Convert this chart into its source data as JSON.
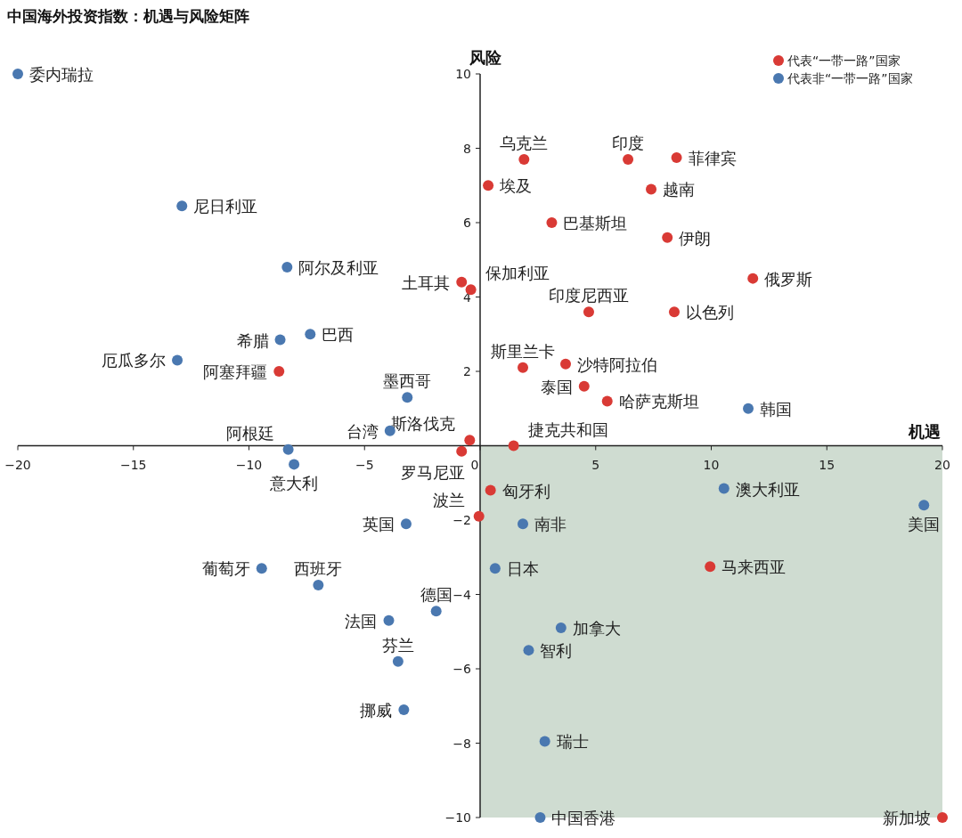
{
  "chart_data": {
    "type": "scatter",
    "title": "中国海外投资指数：机遇与风险矩阵",
    "xlabel": "机遇",
    "ylabel": "风险",
    "xlim": [
      -20,
      20
    ],
    "ylim": [
      -10,
      10
    ],
    "xticks": [
      -20,
      -15,
      -10,
      -5,
      0,
      5,
      10,
      15,
      20
    ],
    "yticks": [
      -10,
      -8,
      -6,
      -4,
      -2,
      {
        "value": 0,
        "label": null
      },
      2,
      4,
      6,
      8,
      10
    ],
    "grid": false,
    "legend": "top right",
    "marker": "circle",
    "bands": [
      {
        "axis": "x",
        "from": 0,
        "to": 20,
        "color": "#cfdcd1"
      }
    ],
    "series": [
      {
        "name": "代表“一带一路”国家",
        "color": "#d93a35",
        "x": [
          1.9,
          6.4,
          8.5,
          0.35,
          7.4,
          3.1,
          8.1,
          11.8,
          -0.8,
          -0.4,
          4.7,
          8.4,
          1.85,
          3.7,
          4.5,
          5.5,
          -8.7,
          -0.45,
          1.45,
          -0.8,
          0.45,
          -0.05,
          9.95,
          20
        ],
        "values": [
          7.7,
          7.7,
          7.75,
          7.0,
          6.9,
          6.0,
          5.6,
          4.5,
          4.4,
          4.2,
          3.6,
          3.6,
          2.1,
          2.2,
          1.6,
          1.2,
          2.0,
          0.15,
          0.0,
          -0.15,
          -1.2,
          -1.9,
          -3.25,
          -10
        ],
        "value_labels": [
          "乌克兰",
          "印度",
          "菲律宾",
          "埃及",
          "越南",
          "巴基斯坦",
          "伊朗",
          "俄罗斯",
          "土耳其",
          "保加利亚",
          "印度尼西亚",
          "以色列",
          "斯里兰卡",
          "沙特阿拉伯",
          "泰国",
          "哈萨克斯坦",
          "阿塞拜疆",
          "斯洛伐克",
          "捷克共和国",
          "罗马尼亚",
          "匈牙利",
          "波兰",
          "马来西亚",
          "新加坡"
        ]
      },
      {
        "name": "代表非“一带一路”国家",
        "color": "#4a78b0",
        "x": [
          -20,
          -12.9,
          -8.35,
          -7.35,
          -8.65,
          -13.1,
          -3.15,
          -3.9,
          11.6,
          -8.3,
          -8.05,
          10.55,
          19.2,
          -3.2,
          1.85,
          -9.45,
          0.65,
          -7.0,
          -1.9,
          -3.95,
          3.5,
          2.1,
          -3.55,
          -3.3,
          2.8,
          2.6
        ],
        "values": [
          10,
          6.45,
          4.8,
          3.0,
          2.85,
          2.3,
          1.3,
          0.4,
          1.0,
          -0.1,
          -0.5,
          -1.15,
          -1.6,
          -2.1,
          -2.1,
          -3.3,
          -3.3,
          -3.75,
          -4.45,
          -4.7,
          -4.9,
          -5.5,
          -5.8,
          -7.1,
          -7.95,
          -10
        ],
        "value_labels": [
          "委内瑞拉",
          "尼日利亚",
          "阿尔及利亚",
          "巴西",
          "希腊",
          "厄瓜多尔",
          "墨西哥",
          "台湾",
          "韩国",
          "阿根廷",
          "意大利",
          "澳大利亚",
          "美国",
          "英国",
          "南非",
          "葡萄牙",
          "日本",
          "西班牙",
          "德国",
          "法国",
          "加拿大",
          "智利",
          "芬兰",
          "挪威",
          "瑞士",
          "中国香港"
        ]
      }
    ]
  }
}
